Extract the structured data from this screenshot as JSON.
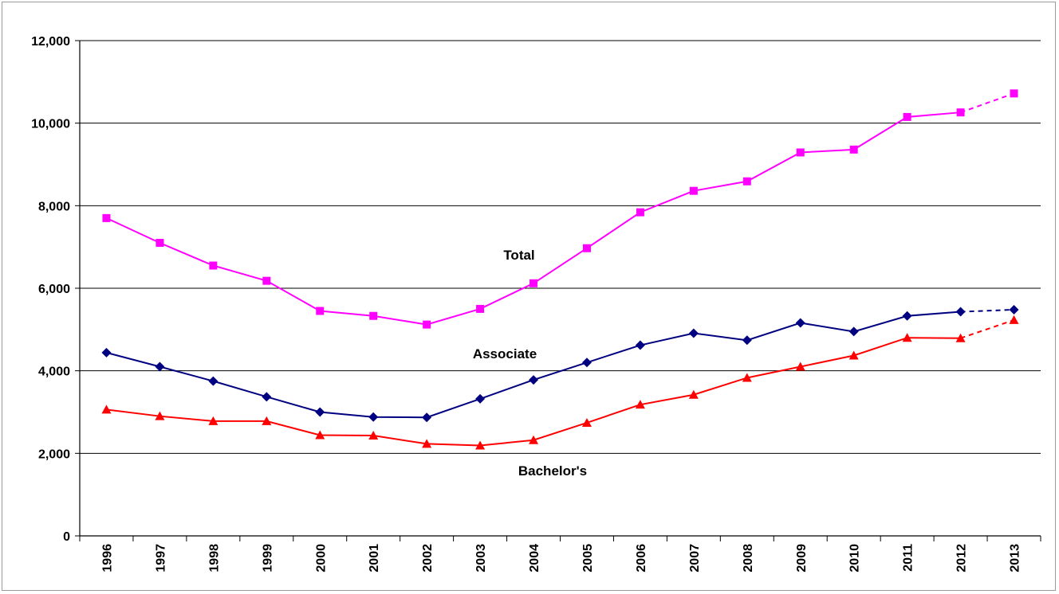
{
  "chart_data": {
    "type": "line",
    "title": "",
    "xlabel": "",
    "ylabel": "",
    "ylim": [
      0,
      12000
    ],
    "yticks": [
      "0",
      "2,000",
      "4,000",
      "6,000",
      "8,000",
      "10,000",
      "12,000"
    ],
    "ytick_values": [
      0,
      2000,
      4000,
      6000,
      8000,
      10000,
      12000
    ],
    "categories": [
      "1996",
      "1997",
      "1998",
      "1999",
      "2000",
      "2001",
      "2002",
      "2003",
      "2004",
      "2005",
      "2006",
      "2007",
      "2008",
      "2009",
      "2010",
      "2011",
      "2012",
      "2013"
    ],
    "grid": "horizontal",
    "projected_last_segment": true,
    "series": [
      {
        "name": "Total",
        "color": "#ff00ff",
        "marker": "square",
        "values": [
          7700,
          7100,
          6550,
          6180,
          5450,
          5330,
          5120,
          5500,
          6120,
          6970,
          7840,
          8360,
          8590,
          9290,
          9360,
          10150,
          10260,
          10720
        ]
      },
      {
        "name": "Associate",
        "color": "#000080",
        "marker": "diamond",
        "values": [
          4440,
          4100,
          3750,
          3370,
          3000,
          2880,
          2870,
          3320,
          3780,
          4200,
          4620,
          4910,
          4740,
          5160,
          4950,
          5330,
          5430,
          5480
        ]
      },
      {
        "name": "Bachelor's",
        "color": "#ff0000",
        "marker": "triangle",
        "values": [
          3060,
          2900,
          2780,
          2780,
          2440,
          2430,
          2230,
          2190,
          2320,
          2740,
          3180,
          3420,
          3830,
          4100,
          4370,
          4800,
          4790,
          5230
        ]
      }
    ]
  }
}
